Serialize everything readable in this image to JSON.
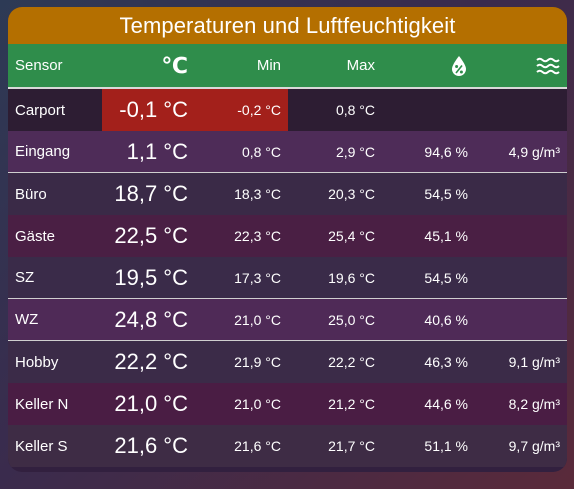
{
  "card": {
    "title": "Temperaturen und Luftfeuchtigkeit"
  },
  "columns": {
    "sensor": "Sensor",
    "temp_symbol": "℃",
    "min": "Min",
    "max": "Max",
    "humidity_icon": "water-drop-percent-icon",
    "abs_humidity_icon": "water-waves-icon"
  },
  "colors": {
    "title_bar": "#b46f00",
    "header_bar": "#2f8d4b",
    "alert": "#a3201b"
  },
  "rows": [
    {
      "sensor": "Carport",
      "temp": "-0,1 °C",
      "min": "-0,2 °C",
      "max": "0,8 °C",
      "hum": "",
      "abs": "",
      "bg": "#2d1d33",
      "alert": true
    },
    {
      "sensor": "Eingang",
      "temp": "1,1 °C",
      "min": "0,8 °C",
      "max": "2,9 °C",
      "hum": "94,6 %",
      "abs": "4,9 g/m³",
      "bg": "#4e2c58"
    },
    {
      "sensor": "Büro",
      "temp": "18,7 °C",
      "min": "18,3 °C",
      "max": "20,3 °C",
      "hum": "54,5 %",
      "abs": "",
      "bg": "#3a2a47"
    },
    {
      "sensor": "Gäste",
      "temp": "22,5 °C",
      "min": "22,3 °C",
      "max": "25,4 °C",
      "hum": "45,1 %",
      "abs": "",
      "bg": "#4a1f44"
    },
    {
      "sensor": "SZ",
      "temp": "19,5 °C",
      "min": "17,3 °C",
      "max": "19,6 °C",
      "hum": "54,5 %",
      "abs": "",
      "bg": "#3a2b49"
    },
    {
      "sensor": "WZ",
      "temp": "24,8 °C",
      "min": "21,0 °C",
      "max": "25,0 °C",
      "hum": "40,6 %",
      "abs": "",
      "bg": "#4f2a57"
    },
    {
      "sensor": "Hobby",
      "temp": "22,2 °C",
      "min": "21,9 °C",
      "max": "22,2 °C",
      "hum": "46,3 %",
      "abs": "9,1 g/m³",
      "bg": "#3b2b48"
    },
    {
      "sensor": "Keller N",
      "temp": "21,0 °C",
      "min": "21,0 °C",
      "max": "21,2 °C",
      "hum": "44,6 %",
      "abs": "8,2 g/m³",
      "bg": "#4a1d44"
    },
    {
      "sensor": "Keller S",
      "temp": "21,6 °C",
      "min": "21,6 °C",
      "max": "21,7 °C",
      "hum": "51,1 %",
      "abs": "9,7 g/m³",
      "bg": "#3e2c45"
    }
  ]
}
